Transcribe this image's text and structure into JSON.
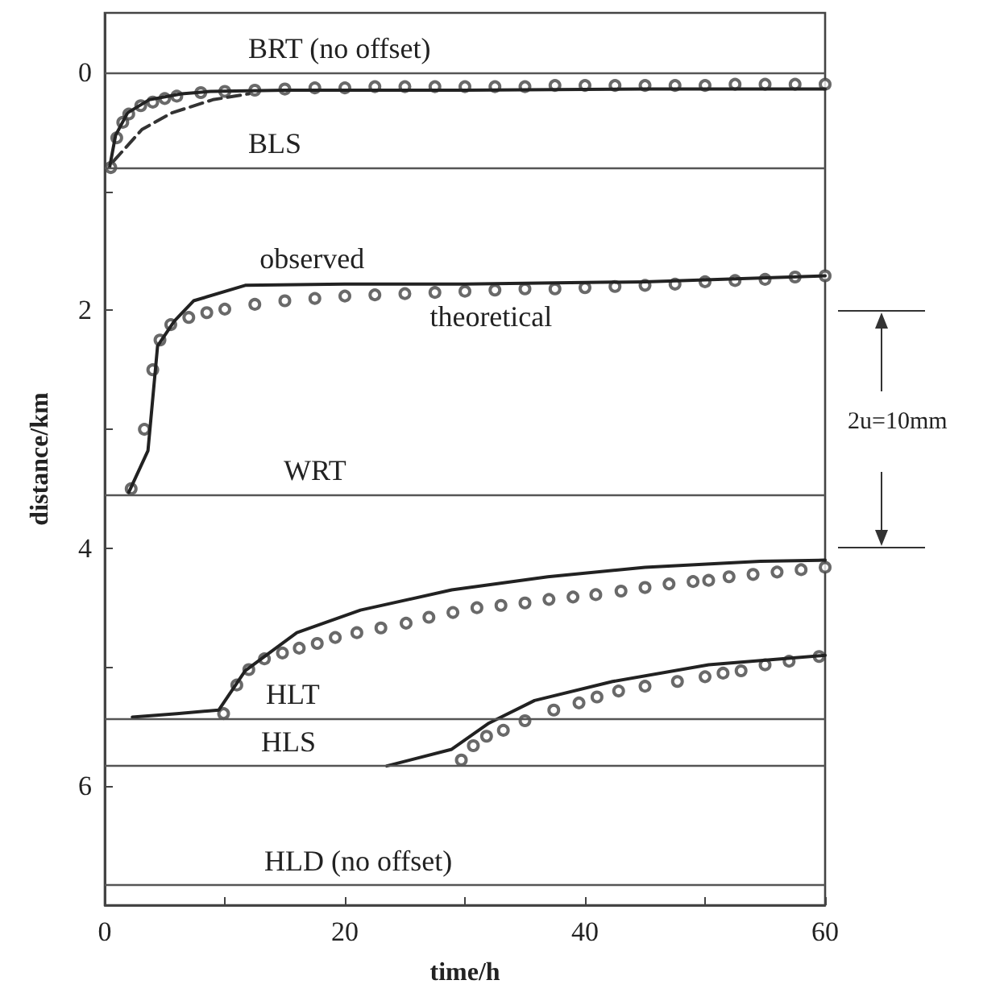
{
  "chart_data": {
    "type": "line",
    "xlabel": "time/h",
    "ylabel": "distance/km",
    "xlim": [
      0,
      60
    ],
    "xticks": [
      0,
      {
        "value": 10,
        "label": null
      },
      20,
      {
        "value": 30,
        "label": null
      },
      40,
      {
        "value": 50,
        "label": null
      },
      60
    ],
    "ylim": [
      7,
      -0.5
    ],
    "yticks": [
      0,
      {
        "value": 1,
        "label": null
      },
      2,
      {
        "value": 3,
        "label": null
      },
      4,
      {
        "value": 5,
        "label": null
      },
      6,
      {
        "value": 7,
        "label": null
      }
    ],
    "grid": false,
    "marker": "none",
    "line_style": "solid",
    "ref_lines": [
      {
        "axis": "y",
        "value": 0,
        "color": "#555555",
        "label": "BRT (no offset)"
      },
      {
        "axis": "y",
        "value": 0.8,
        "color": "#555555",
        "label": "BLS"
      },
      {
        "axis": "y",
        "value": 3.55,
        "color": "#555555",
        "label": "WRT"
      },
      {
        "axis": "y",
        "value": 5.43,
        "color": "#555555",
        "label": "HLT"
      },
      {
        "axis": "y",
        "value": 5.83,
        "color": "#555555",
        "label": "HLS"
      },
      {
        "axis": "y",
        "value": 6.83,
        "color": "#555555",
        "label": "HLD (no offset)"
      }
    ],
    "annotations": [
      {
        "text": "observed",
        "x": 23.5,
        "y": 1.78
      },
      {
        "text": "theoretical",
        "x": 26,
        "y": 1.86
      },
      "2u=10mm"
    ],
    "series": [
      {
        "color": "#222222",
        "x": [
          0.4,
          0.9,
          1.9,
          3.7,
          6.4,
          8.8,
          15,
          30,
          45,
          60
        ],
        "values": [
          0.8,
          0.53,
          0.34,
          0.23,
          0.18,
          0.16,
          0.15,
          0.15,
          0.14,
          0.14
        ]
      },
      {
        "color": "#333333",
        "line_style": "dashed",
        "x": [
          0.7,
          3.1,
          5.6,
          9,
          12
        ],
        "values": [
          0.75,
          0.48,
          0.34,
          0.23,
          0.18
        ]
      },
      {
        "type": "scatter",
        "marker": "circle",
        "color": "#444444",
        "x": [
          0.5,
          1,
          1.5,
          2,
          3,
          4,
          5,
          6,
          8,
          10,
          12.5,
          15,
          17.5,
          20,
          22.5,
          25,
          27.5,
          30,
          32.5,
          35,
          37.5,
          40,
          42.5,
          45,
          47.5,
          50,
          52.5,
          55,
          57.5,
          60
        ],
        "values": [
          0.8,
          0.55,
          0.42,
          0.35,
          0.28,
          0.25,
          0.22,
          0.2,
          0.17,
          0.16,
          0.15,
          0.14,
          0.13,
          0.13,
          0.12,
          0.12,
          0.12,
          0.12,
          0.12,
          0.12,
          0.11,
          0.11,
          0.11,
          0.11,
          0.11,
          0.11,
          0.1,
          0.1,
          0.1,
          0.1
        ]
      },
      {
        "color": "#222222",
        "x": [
          2,
          3.6,
          4.4,
          5.8,
          7.4,
          11.7,
          20,
          30,
          45,
          60
        ],
        "values": [
          3.53,
          3.18,
          2.3,
          2.09,
          1.92,
          1.79,
          1.78,
          1.78,
          1.76,
          1.71
        ]
      },
      {
        "type": "scatter",
        "marker": "circle",
        "color": "#444444",
        "x": [
          2.2,
          3.3,
          4,
          4.6,
          5.5,
          7,
          8.5,
          10,
          12.5,
          15,
          17.5,
          20,
          22.5,
          25,
          27.5,
          30,
          32.5,
          35,
          37.5,
          40,
          42.5,
          45,
          47.5,
          50,
          52.5,
          55,
          57.5,
          60
        ],
        "values": [
          3.5,
          3.0,
          2.5,
          2.25,
          2.12,
          2.06,
          2.02,
          1.99,
          1.95,
          1.92,
          1.9,
          1.88,
          1.87,
          1.86,
          1.85,
          1.84,
          1.83,
          1.82,
          1.82,
          1.81,
          1.8,
          1.79,
          1.78,
          1.76,
          1.75,
          1.74,
          1.72,
          1.71
        ]
      },
      {
        "color": "#222222",
        "x": [
          2.3,
          6,
          9.5,
          11.7,
          16,
          21.3,
          28.9,
          36.9,
          45,
          54.6,
          60
        ],
        "values": [
          5.42,
          5.39,
          5.36,
          5.03,
          4.71,
          4.52,
          4.35,
          4.24,
          4.16,
          4.11,
          4.1
        ]
      },
      {
        "type": "scatter",
        "marker": "circle",
        "color": "#444444",
        "x": [
          9.9,
          11,
          12,
          13.3,
          14.8,
          16.2,
          17.7,
          19.2,
          21,
          23,
          25.1,
          27,
          29,
          31,
          33,
          35,
          37,
          39,
          40.9,
          43,
          45,
          47,
          49,
          50.3,
          52,
          54,
          56,
          58,
          60
        ],
        "values": [
          5.39,
          5.15,
          5.02,
          4.93,
          4.88,
          4.84,
          4.8,
          4.75,
          4.71,
          4.67,
          4.63,
          4.58,
          4.54,
          4.5,
          4.48,
          4.46,
          4.43,
          4.41,
          4.39,
          4.36,
          4.33,
          4.3,
          4.28,
          4.27,
          4.24,
          4.22,
          4.2,
          4.18,
          4.16
        ]
      },
      {
        "color": "#222222",
        "x": [
          23.5,
          28.9,
          32,
          35.8,
          42.3,
          50.3,
          60
        ],
        "values": [
          5.83,
          5.69,
          5.47,
          5.28,
          5.12,
          4.98,
          4.9
        ]
      },
      {
        "type": "scatter",
        "marker": "circle",
        "color": "#444444",
        "x": [
          29.7,
          30.7,
          31.8,
          33.2,
          35,
          37.4,
          39.5,
          41,
          42.8,
          45,
          47.7,
          50,
          51.5,
          53,
          55,
          57,
          59.5
        ],
        "values": [
          5.78,
          5.66,
          5.58,
          5.53,
          5.45,
          5.36,
          5.3,
          5.25,
          5.2,
          5.16,
          5.12,
          5.08,
          5.05,
          5.03,
          4.98,
          4.95,
          4.91
        ]
      }
    ]
  }
}
